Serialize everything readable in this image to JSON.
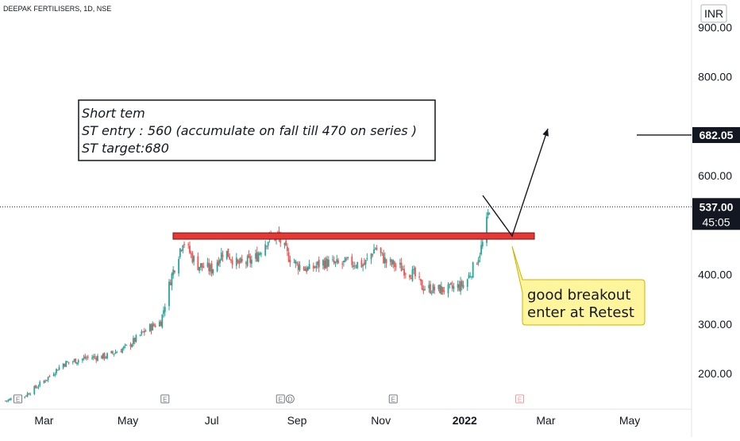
{
  "header": {
    "symbol_title": "DEEPAK FERTILISERS, 1D, NSE"
  },
  "price_axis": {
    "currency": "INR",
    "labels": [
      "900.00",
      "800.00",
      "600.00",
      "400.00",
      "300.00",
      "200.00"
    ]
  },
  "last_price": {
    "value": "537.00",
    "countdown": "45:05",
    "color": "#131722"
  },
  "target_marker": {
    "value": "682.05",
    "color": "#131722"
  },
  "time_axis": {
    "labels": [
      "Mar",
      "May",
      "Jul",
      "Sep",
      "Nov",
      "2022",
      "Mar",
      "May"
    ]
  },
  "annotations": {
    "note_lines": [
      "Short tem",
      "ST entry : 560 (accumulate on fall till 470 on series )",
      "ST target:680"
    ],
    "callout_lines": [
      "good breakout",
      "enter at Retest"
    ],
    "resistance_level": 478
  },
  "event_markers": [
    {
      "label": "E",
      "date": "2021-02-10"
    },
    {
      "label": "E",
      "date": "2021-05-28"
    },
    {
      "label": "E",
      "date": "2021-08-20"
    },
    {
      "label": "D",
      "date": "2021-08-27"
    },
    {
      "label": "E",
      "date": "2021-11-10"
    },
    {
      "label": "E",
      "date": "2022-02-10"
    }
  ],
  "colors": {
    "up": "#26a69a",
    "down": "#ef5350",
    "resistance": "#e53935",
    "callout_bg": "#fff59d",
    "callout_border": "#c8b400"
  },
  "chart_data": {
    "type": "candlestick",
    "title": "DEEPAK FERTILISERS, 1D, NSE",
    "y_unit": "INR",
    "ylim": [
      128,
      955
    ],
    "xlim": [
      "2021-01-28",
      "2022-06-15"
    ],
    "series_close": [
      [
        "2021-02-01",
        145
      ],
      [
        "2021-02-15",
        155
      ],
      [
        "2021-03-01",
        185
      ],
      [
        "2021-03-15",
        220
      ],
      [
        "2021-04-01",
        232
      ],
      [
        "2021-04-15",
        235
      ],
      [
        "2021-05-01",
        255
      ],
      [
        "2021-05-15",
        290
      ],
      [
        "2021-05-25",
        305
      ],
      [
        "2021-06-01",
        390
      ],
      [
        "2021-06-10",
        470
      ],
      [
        "2021-06-20",
        420
      ],
      [
        "2021-07-01",
        410
      ],
      [
        "2021-07-10",
        450
      ],
      [
        "2021-07-20",
        420
      ],
      [
        "2021-08-01",
        430
      ],
      [
        "2021-08-10",
        470
      ],
      [
        "2021-08-18",
        478
      ],
      [
        "2021-08-25",
        440
      ],
      [
        "2021-09-01",
        420
      ],
      [
        "2021-09-10",
        410
      ],
      [
        "2021-09-20",
        425
      ],
      [
        "2021-10-01",
        420
      ],
      [
        "2021-10-10",
        425
      ],
      [
        "2021-10-20",
        420
      ],
      [
        "2021-10-28",
        455
      ],
      [
        "2021-11-05",
        425
      ],
      [
        "2021-11-15",
        415
      ],
      [
        "2021-11-25",
        400
      ],
      [
        "2021-12-01",
        375
      ],
      [
        "2021-12-10",
        370
      ],
      [
        "2021-12-20",
        370
      ],
      [
        "2022-01-01",
        380
      ],
      [
        "2022-01-10",
        430
      ],
      [
        "2022-01-15",
        470
      ],
      [
        "2022-01-19",
        537
      ]
    ]
  }
}
